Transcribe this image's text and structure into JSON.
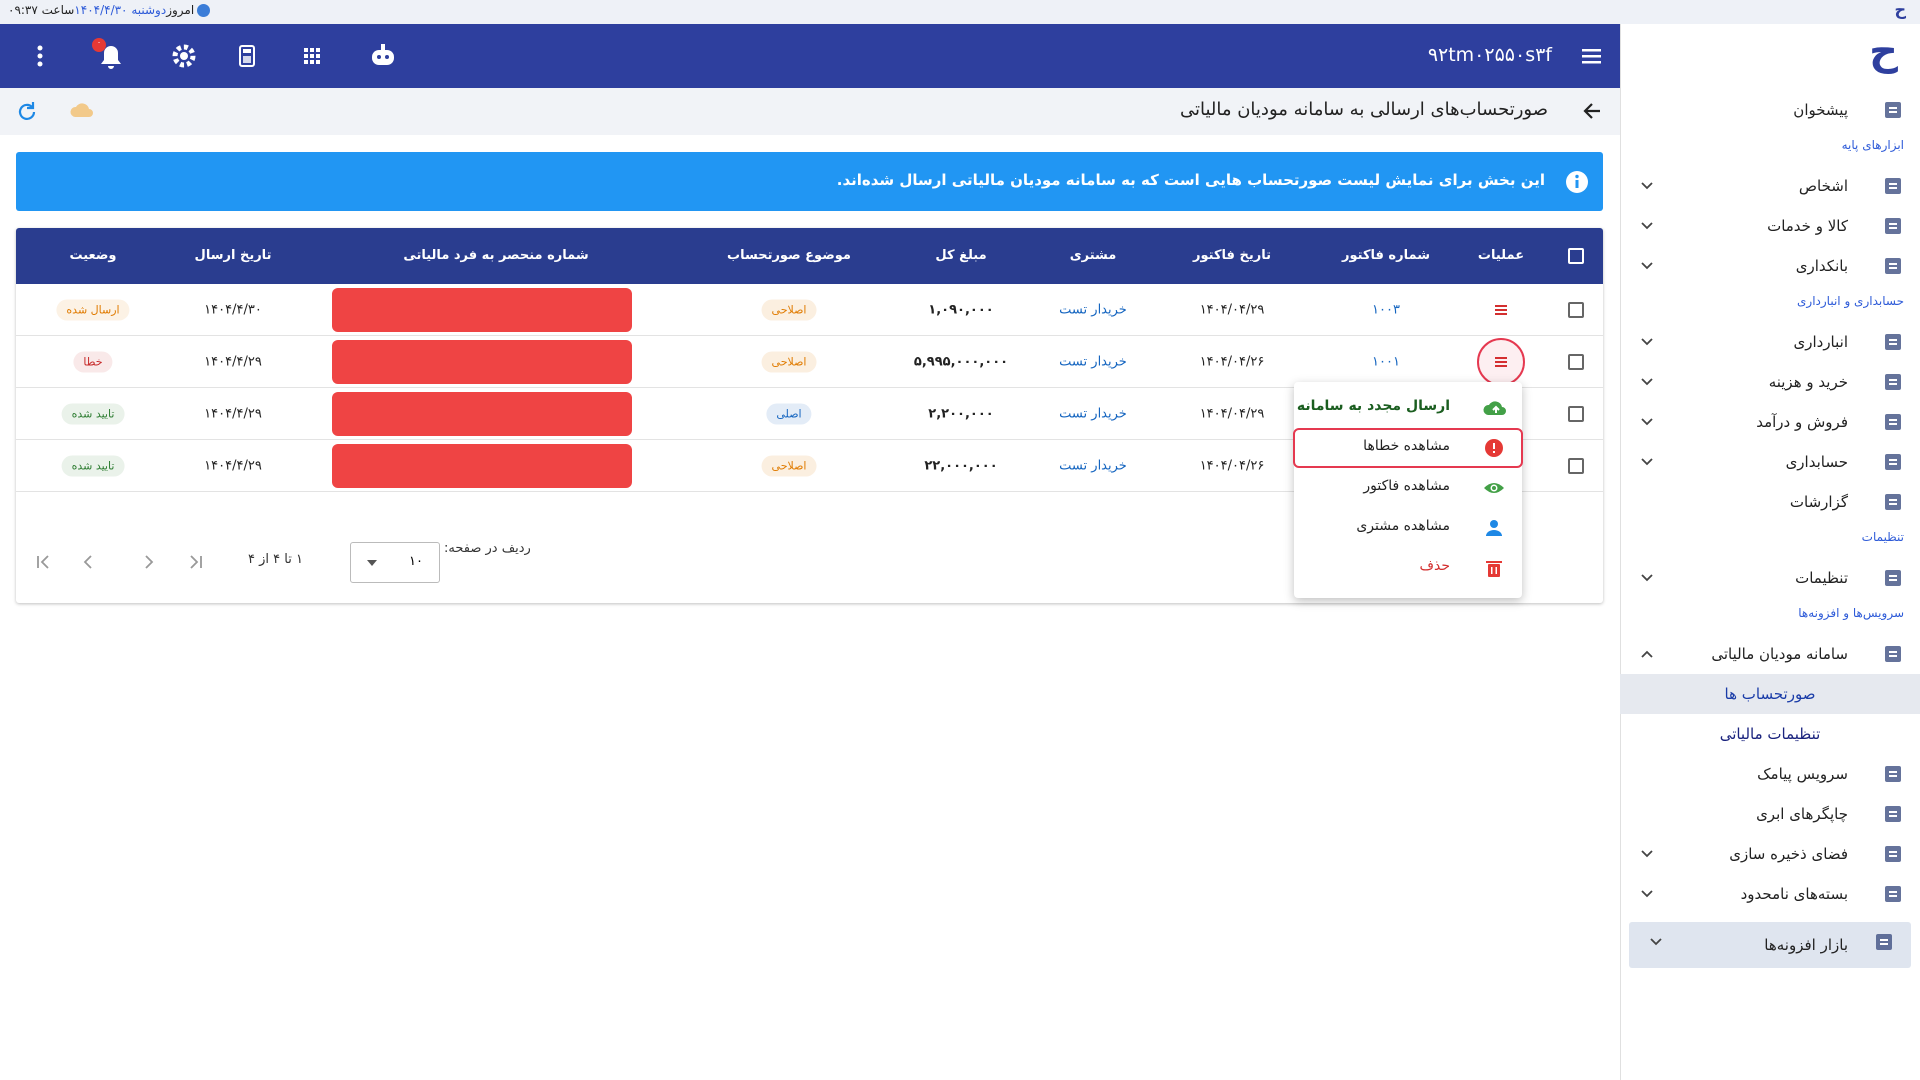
{
  "status_bar": {
    "today": "امروز",
    "date": "دوشنبه ۱۴۰۴/۴/۳۰",
    "time": "ساعت ۰۹:۳۷"
  },
  "header": {
    "logo": "ح",
    "code": "۹۲tm۰۲۵۵۰s۳f",
    "badge": "۰"
  },
  "page": {
    "title": "صورتحساب‌های ارسالی به سامانه مودیان مالیاتی",
    "info": "این بخش برای نمایش لیست صورتحساب هایی است که به سامانه مودیان مالیاتی ارسال شده‌اند."
  },
  "table": {
    "columns": [
      "عملیات",
      "شماره فاکتور",
      "تاریخ فاکتور",
      "مشتری",
      "مبلغ کل",
      "موضوع صورتحساب",
      "شماره منحصر به فرد مالیاتی",
      "تاریخ ارسال",
      "وضعیت"
    ],
    "rows": [
      {
        "invoice": "۱۰۰۳",
        "invoice_date": "۱۴۰۴/۰۴/۲۹",
        "customer": "خریدار تست",
        "total": "۱,۰۹۰,۰۰۰",
        "subject": {
          "text": "اصلاحی",
          "color": "#e07b00"
        },
        "sent_date": "۱۴۰۴/۴/۳۰",
        "status": {
          "text": "ارسال شده",
          "color": "#e07b00"
        }
      },
      {
        "invoice": "۱۰۰۱",
        "invoice_date": "۱۴۰۴/۰۴/۲۶",
        "customer": "خریدار تست",
        "total": "۵,۹۹۵,۰۰۰,۰۰۰",
        "subject": {
          "text": "اصلاحی",
          "color": "#e07b00"
        },
        "sent_date": "۱۴۰۴/۴/۲۹",
        "status": {
          "text": "خطا",
          "color": "#c62828"
        }
      },
      {
        "invoice_date": "۱۴۰۴/۰۴/۲۹",
        "customer": "خریدار تست",
        "total": "۲,۲۰۰,۰۰۰",
        "subject": {
          "text": "اصلی",
          "color": "#1565c0"
        },
        "sent_date": "۱۴۰۴/۴/۲۹",
        "status": {
          "text": "تایید شده",
          "color": "#2e7d32"
        }
      },
      {
        "invoice_date": "۱۴۰۴/۰۴/۲۶",
        "customer": "خریدار تست",
        "total": "۲۲,۰۰۰,۰۰۰",
        "subject": {
          "text": "اصلاحی",
          "color": "#e07b00"
        },
        "sent_date": "۱۴۰۴/۴/۲۹",
        "status": {
          "text": "تایید شده",
          "color": "#2e7d32"
        }
      }
    ]
  },
  "menu": [
    {
      "label": "ارسال مجدد به سامانه",
      "color": "#1b5e20",
      "icon_color": "#43a047"
    },
    {
      "label": "مشاهده خطاها",
      "color": "#222222",
      "icon_color": "#e53935"
    },
    {
      "label": "مشاهده فاکتور",
      "color": "#222222",
      "icon_color": "#43a047"
    },
    {
      "label": "مشاهده مشتری",
      "color": "#222222",
      "icon_color": "#1e88e5"
    },
    {
      "label": "حذف",
      "color": "#d32f2f",
      "icon_color": "#e53935"
    }
  ],
  "pagination": {
    "rows_label": "ردیف در صفحه:",
    "rows_per_page": "۱۰",
    "range": "۱ تا ۴ از ۴"
  },
  "sidebar": [
    {
      "items": [
        {
          "label": "پیشخوان"
        }
      ]
    },
    {
      "title": "ابزارهای پایه",
      "items": [
        {
          "label": "اشخاص",
          "expandable": true
        },
        {
          "label": "کالا و خدمات",
          "expandable": true
        },
        {
          "label": "بانکداری",
          "expandable": true
        }
      ]
    },
    {
      "title": "حسابداری و انبارداری",
      "items": [
        {
          "label": "انبارداری",
          "expandable": true
        },
        {
          "label": "خرید و هزینه",
          "expandable": true
        },
        {
          "label": "فروش و درآمد",
          "expandable": true
        },
        {
          "label": "حسابداری",
          "expandable": true
        },
        {
          "label": "گزارشات"
        }
      ]
    },
    {
      "title": "تنظیمات",
      "items": [
        {
          "label": "تنظیمات",
          "expandable": true
        }
      ]
    },
    {
      "title": "سرویس‌ها و افزونه‌ها",
      "items": [
        {
          "label": "سامانه مودیان مالیاتی",
          "expandable": true,
          "expanded": true,
          "children": [
            {
              "label": "صورتحساب ها",
              "selected": true
            },
            {
              "label": "تنظیمات مالیاتی"
            }
          ]
        },
        {
          "label": "سرویس پیامک"
        },
        {
          "label": "چاپگرهای ابری"
        },
        {
          "label": "فضای ذخیره سازی",
          "expandable": true
        },
        {
          "label": "بسته‌های نامحدود",
          "expandable": true
        },
        {
          "label": "بازار افزونه‌ها",
          "expandable": true,
          "boxed": true
        }
      ]
    }
  ]
}
